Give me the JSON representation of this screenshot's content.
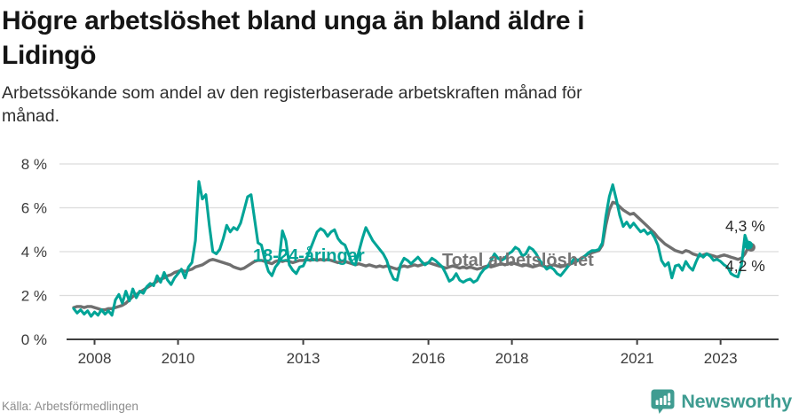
{
  "header": {
    "title_line1": "Högre arbetslöshet bland unga än bland äldre i",
    "title_line2": "Lidingö",
    "subtitle_line1": "Arbetssökande som andel av den registerbaserade arbetskraften månad för",
    "subtitle_line2": "månad."
  },
  "footer": {
    "source": "Källa: Arbetsförmedlingen",
    "brand": "Newsworthy"
  },
  "colors": {
    "young_line": "#00a497",
    "total_line": "#6f6f6f",
    "grid": "#dcdcdc",
    "axis": "#3f3f3f",
    "tick_text": "#3c3c3c",
    "value_label": "#2b2b2b",
    "brand_teal": "#3f9c91"
  },
  "chart_data": {
    "type": "line",
    "title": "Högre arbetslöshet bland unga än bland äldre i Lidingö",
    "subtitle": "Arbetssökande som andel av den registerbaserade arbetskraften månad för månad.",
    "unit": "%",
    "frequency": "monthly",
    "x_start": "2007-07",
    "x_end": "2023-09",
    "ylim": [
      0,
      8
    ],
    "grid": true,
    "y_ticks": [
      {
        "value": 0,
        "label": "0 %"
      },
      {
        "value": 2,
        "label": "2 %"
      },
      {
        "value": 4,
        "label": "4 %"
      },
      {
        "value": 6,
        "label": "6 %"
      },
      {
        "value": 8,
        "label": "8 %"
      }
    ],
    "x_ticks": [
      {
        "label": "2008",
        "month_index": 6
      },
      {
        "label": "2010",
        "month_index": 30
      },
      {
        "label": "2013",
        "month_index": 66
      },
      {
        "label": "2016",
        "month_index": 102
      },
      {
        "label": "2018",
        "month_index": 126
      },
      {
        "label": "2021",
        "month_index": 162
      },
      {
        "label": "2023",
        "month_index": 186
      }
    ],
    "series": [
      {
        "name": "18-24-åringar",
        "color": "#00a497",
        "end_label": "4,3 %",
        "end_value": 4.3,
        "values": [
          1.4,
          1.2,
          1.35,
          1.15,
          1.3,
          1.05,
          1.25,
          1.1,
          1.35,
          1.15,
          1.3,
          1.1,
          1.8,
          2.05,
          1.65,
          2.2,
          1.75,
          2.3,
          1.9,
          2.2,
          2.1,
          2.4,
          2.55,
          2.45,
          2.9,
          2.6,
          3.05,
          2.7,
          2.5,
          2.8,
          3.0,
          3.2,
          2.8,
          3.3,
          3.5,
          4.5,
          7.2,
          6.4,
          6.6,
          5.2,
          4.0,
          3.9,
          4.1,
          4.6,
          5.2,
          4.9,
          5.1,
          5.0,
          5.3,
          5.9,
          6.5,
          6.6,
          5.5,
          4.4,
          4.3,
          3.6,
          3.1,
          2.9,
          3.3,
          3.5,
          4.95,
          4.5,
          3.4,
          3.15,
          3.0,
          3.3,
          3.35,
          3.7,
          4.1,
          4.5,
          4.9,
          5.05,
          4.95,
          4.7,
          4.9,
          5.0,
          4.6,
          4.4,
          4.3,
          3.9,
          3.5,
          3.4,
          4.0,
          4.6,
          5.1,
          4.8,
          4.5,
          4.3,
          4.1,
          3.9,
          3.6,
          3.1,
          2.75,
          2.7,
          3.4,
          3.7,
          3.6,
          3.45,
          3.6,
          3.75,
          3.55,
          3.4,
          3.5,
          3.7,
          3.6,
          3.45,
          3.3,
          3.0,
          2.65,
          2.75,
          3.0,
          2.7,
          2.6,
          2.7,
          2.75,
          2.6,
          2.7,
          3.0,
          3.2,
          3.3,
          3.6,
          3.9,
          3.7,
          3.6,
          3.7,
          3.9,
          4.0,
          4.2,
          4.1,
          3.8,
          3.9,
          4.2,
          4.1,
          3.9,
          3.6,
          3.4,
          3.2,
          3.3,
          3.2,
          3.0,
          2.9,
          3.1,
          3.3,
          3.5,
          3.7,
          3.6,
          3.7,
          3.8,
          3.95,
          4.05,
          4.05,
          4.1,
          4.4,
          5.6,
          6.5,
          7.05,
          6.4,
          5.65,
          5.15,
          5.35,
          5.1,
          5.3,
          5.1,
          4.9,
          5.0,
          4.8,
          4.9,
          4.65,
          4.3,
          3.6,
          3.35,
          3.5,
          2.8,
          3.35,
          3.4,
          3.15,
          3.55,
          3.3,
          3.15,
          3.55,
          3.9,
          3.75,
          3.9,
          3.8,
          3.6,
          3.65,
          3.55,
          3.4,
          3.3,
          3.0,
          2.9,
          2.85,
          3.4,
          4.75,
          4.3
        ]
      },
      {
        "name": "Total arbetslöshet",
        "color": "#6f6f6f",
        "end_label": "4,2 %",
        "end_value": 4.2,
        "values": [
          1.45,
          1.5,
          1.5,
          1.45,
          1.5,
          1.5,
          1.45,
          1.4,
          1.35,
          1.35,
          1.4,
          1.4,
          1.45,
          1.5,
          1.55,
          1.65,
          1.8,
          1.95,
          2.05,
          2.15,
          2.25,
          2.35,
          2.45,
          2.55,
          2.65,
          2.75,
          2.8,
          2.9,
          2.95,
          3.05,
          3.1,
          3.15,
          3.1,
          3.15,
          3.2,
          3.3,
          3.35,
          3.4,
          3.5,
          3.6,
          3.65,
          3.6,
          3.55,
          3.5,
          3.45,
          3.4,
          3.3,
          3.25,
          3.2,
          3.25,
          3.35,
          3.45,
          3.55,
          3.6,
          3.6,
          3.55,
          3.5,
          3.45,
          3.55,
          3.6,
          3.55,
          3.6,
          3.55,
          3.5,
          3.55,
          3.6,
          3.6,
          3.65,
          3.6,
          3.65,
          3.6,
          3.65,
          3.6,
          3.65,
          3.6,
          3.55,
          3.5,
          3.55,
          3.55,
          3.5,
          3.45,
          3.4,
          3.45,
          3.4,
          3.35,
          3.4,
          3.35,
          3.3,
          3.35,
          3.3,
          3.35,
          3.3,
          3.25,
          3.2,
          3.3,
          3.35,
          3.3,
          3.35,
          3.4,
          3.35,
          3.4,
          3.45,
          3.5,
          3.45,
          3.4,
          3.35,
          3.3,
          3.25,
          3.3,
          3.35,
          3.3,
          3.25,
          3.3,
          3.25,
          3.3,
          3.25,
          3.2,
          3.25,
          3.3,
          3.35,
          3.3,
          3.35,
          3.4,
          3.45,
          3.4,
          3.45,
          3.5,
          3.45,
          3.4,
          3.35,
          3.4,
          3.35,
          3.3,
          3.35,
          3.4,
          3.35,
          3.3,
          3.35,
          3.4,
          3.35,
          3.3,
          3.35,
          3.4,
          3.45,
          3.5,
          3.6,
          3.7,
          3.8,
          3.9,
          3.95,
          4.0,
          4.05,
          4.3,
          5.2,
          5.9,
          6.25,
          6.2,
          6.05,
          5.9,
          5.8,
          5.7,
          5.75,
          5.6,
          5.45,
          5.3,
          5.15,
          5.0,
          4.85,
          4.65,
          4.5,
          4.35,
          4.25,
          4.15,
          4.05,
          4.0,
          3.95,
          4.05,
          4.0,
          3.9,
          3.85,
          3.8,
          3.85,
          3.9,
          3.85,
          3.8,
          3.75,
          3.8,
          3.85,
          3.8,
          3.75,
          3.7,
          3.65,
          3.7,
          3.9,
          4.2
        ]
      }
    ],
    "legend_position": "inline-labels"
  }
}
